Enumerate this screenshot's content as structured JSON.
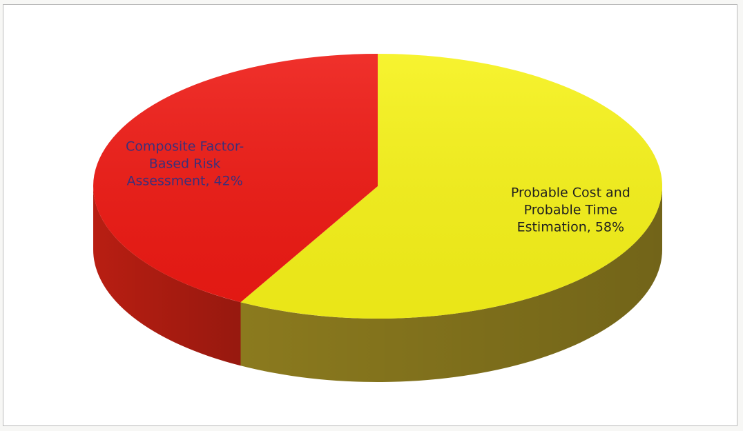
{
  "chart_data": {
    "type": "pie",
    "style": "3d",
    "slices": [
      {
        "label": "Composite Factor-Based Risk Assessment",
        "label_lines": [
          "Composite Factor-",
          "Based Risk",
          "Assessment, 42%"
        ],
        "value": 42,
        "color": "#ee1a14",
        "side_color": "#b81e12"
      },
      {
        "label": "Probable Cost and Probable Time Estimation",
        "label_lines": [
          "Probable Cost and",
          "Probable Time",
          "Estimation, 58%"
        ],
        "value": 58,
        "color": "#f6f219",
        "side_color": "#8b7a1e"
      }
    ],
    "title": "",
    "legend": "none",
    "data_labels": "category name and percentage"
  }
}
